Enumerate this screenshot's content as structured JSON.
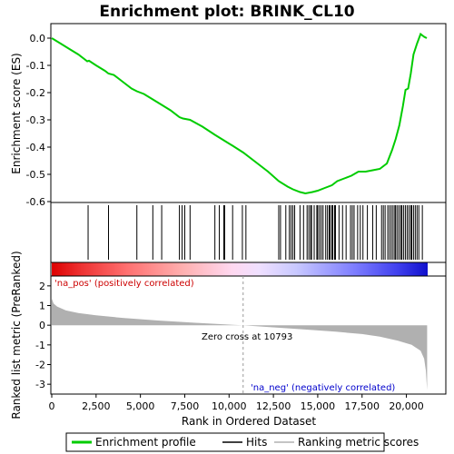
{
  "chart_data": {
    "type": "line",
    "title": "Enrichment plot: BRINK_CL10",
    "top_panel": {
      "ylabel": "Enrichment score (ES)",
      "ylim": [
        -0.6,
        0.0
      ],
      "yticks": [
        "0.0",
        "-0.1",
        "-0.2",
        "-0.3",
        "-0.4",
        "-0.5",
        "-0.6"
      ],
      "series_name": "Enrichment profile",
      "es_curve": [
        [
          0,
          0.0
        ],
        [
          500,
          -0.02
        ],
        [
          1000,
          -0.04
        ],
        [
          1500,
          -0.06
        ],
        [
          2000,
          -0.085
        ],
        [
          2100,
          -0.083
        ],
        [
          2500,
          -0.1
        ],
        [
          3000,
          -0.12
        ],
        [
          3200,
          -0.13
        ],
        [
          3500,
          -0.135
        ],
        [
          4000,
          -0.16
        ],
        [
          4500,
          -0.185
        ],
        [
          4800,
          -0.195
        ],
        [
          5200,
          -0.205
        ],
        [
          5700,
          -0.225
        ],
        [
          6200,
          -0.245
        ],
        [
          6700,
          -0.265
        ],
        [
          7200,
          -0.29
        ],
        [
          7400,
          -0.295
        ],
        [
          7800,
          -0.3
        ],
        [
          8500,
          -0.325
        ],
        [
          9200,
          -0.355
        ],
        [
          9700,
          -0.375
        ],
        [
          10200,
          -0.395
        ],
        [
          10800,
          -0.42
        ],
        [
          11500,
          -0.455
        ],
        [
          12200,
          -0.49
        ],
        [
          12800,
          -0.525
        ],
        [
          13300,
          -0.545
        ],
        [
          13600,
          -0.555
        ],
        [
          14000,
          -0.565
        ],
        [
          14300,
          -0.57
        ],
        [
          14700,
          -0.565
        ],
        [
          15000,
          -0.56
        ],
        [
          15400,
          -0.55
        ],
        [
          15800,
          -0.54
        ],
        [
          16100,
          -0.525
        ],
        [
          16500,
          -0.515
        ],
        [
          16900,
          -0.505
        ],
        [
          17300,
          -0.49
        ],
        [
          17700,
          -0.49
        ],
        [
          18100,
          -0.485
        ],
        [
          18500,
          -0.48
        ],
        [
          18900,
          -0.46
        ],
        [
          19200,
          -0.41
        ],
        [
          19400,
          -0.37
        ],
        [
          19600,
          -0.32
        ],
        [
          19800,
          -0.25
        ],
        [
          19950,
          -0.19
        ],
        [
          20100,
          -0.185
        ],
        [
          20250,
          -0.13
        ],
        [
          20400,
          -0.06
        ],
        [
          20600,
          -0.02
        ],
        [
          20800,
          0.015
        ],
        [
          21000,
          0.005
        ],
        [
          21150,
          0.0
        ]
      ]
    },
    "hits": [
      2050,
      3200,
      4800,
      5700,
      6200,
      7200,
      7350,
      7500,
      7800,
      9200,
      9450,
      9700,
      9750,
      10200,
      10750,
      10950,
      12800,
      12900,
      13200,
      13400,
      13500,
      13600,
      13700,
      14000,
      14200,
      14400,
      14500,
      14600,
      14650,
      14800,
      14950,
      15000,
      15100,
      15200,
      15300,
      15450,
      15550,
      15650,
      15700,
      15800,
      15850,
      15950,
      16000,
      16200,
      16400,
      16600,
      16850,
      16950,
      17050,
      17250,
      17400,
      17550,
      17800,
      18100,
      18300,
      18600,
      18700,
      18800,
      18950,
      19050,
      19150,
      19250,
      19350,
      19400,
      19500,
      19600,
      19700,
      19750,
      19850,
      19950,
      20050,
      20150,
      20250,
      20300,
      20400,
      20500,
      20600,
      20700,
      20900
    ],
    "bottom_panel": {
      "ylabel": "Ranked list metric (PreRanked)",
      "ylim": [
        -3.5,
        2.5
      ],
      "yticks": [
        "2",
        "1",
        "0",
        "-1",
        "-2",
        "-3"
      ],
      "metric_curve": [
        [
          0,
          1.35
        ],
        [
          100,
          1.1
        ],
        [
          300,
          0.95
        ],
        [
          800,
          0.75
        ],
        [
          1500,
          0.62
        ],
        [
          2500,
          0.5
        ],
        [
          4000,
          0.37
        ],
        [
          6000,
          0.24
        ],
        [
          8000,
          0.13
        ],
        [
          10000,
          0.03
        ],
        [
          10793,
          0.0
        ],
        [
          12000,
          -0.08
        ],
        [
          14000,
          -0.2
        ],
        [
          16000,
          -0.33
        ],
        [
          17500,
          -0.45
        ],
        [
          18500,
          -0.58
        ],
        [
          19500,
          -0.78
        ],
        [
          20300,
          -1.0
        ],
        [
          20800,
          -1.3
        ],
        [
          21000,
          -1.7
        ],
        [
          21100,
          -2.3
        ],
        [
          21170,
          -3.3
        ]
      ],
      "pos_label": "'na_pos' (positively correlated)",
      "neg_label": "'na_neg' (negatively correlated)",
      "zero_cross_label": "Zero cross at 10793",
      "zero_cross": 10793
    },
    "xlabel": "Rank in Ordered Dataset",
    "xlim": [
      0,
      21200
    ],
    "xticks": [
      "0",
      "2,500",
      "5,000",
      "7,500",
      "10,000",
      "12,500",
      "15,000",
      "17,500",
      "20,000"
    ],
    "colors": {
      "es_line": "#00cc00",
      "hit_line": "#000000",
      "metric_fill": "#b0b0b0",
      "pos_label": "#cc0000",
      "neg_label": "#0000cc",
      "zero_line": "#999999"
    },
    "legend": {
      "position": "bottom",
      "items": [
        {
          "label": "Enrichment profile",
          "color": "#00cc00",
          "kind": "line"
        },
        {
          "label": "Hits",
          "color": "#000000",
          "kind": "line"
        },
        {
          "label": "Ranking metric scores",
          "color": "#b0b0b0",
          "kind": "line"
        }
      ]
    }
  }
}
